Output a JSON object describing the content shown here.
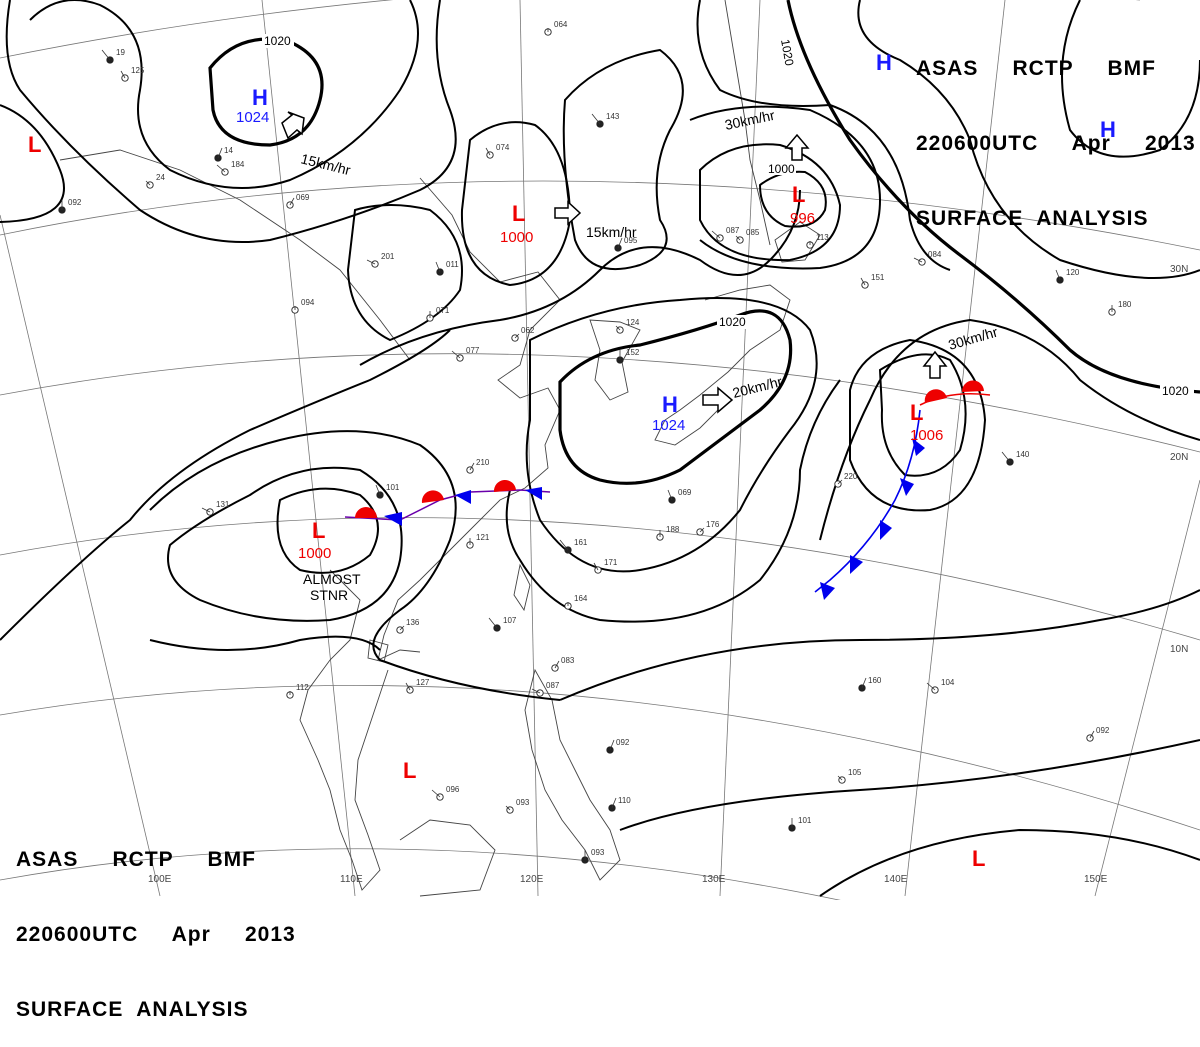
{
  "title": {
    "top": [
      "ASAS     RCTP     BMF",
      "220600UTC     Apr     2013",
      "SURFACE  ANALYSIS"
    ],
    "bottom": [
      "ASAS     RCTP     BMF",
      "220600UTC     Apr     2013",
      "SURFACE  ANALYSIS"
    ]
  },
  "colors": {
    "high": "#1a1aff",
    "low": "#ee0000",
    "isobar": "#000000",
    "warm_front": "#ee0000",
    "cold_front": "#0000ee"
  },
  "longitude_labels": [
    "100E",
    "110E",
    "120E",
    "130E",
    "140E",
    "150E"
  ],
  "latitude_labels": [
    "30N",
    "20N",
    "10N"
  ],
  "isobar_labels": [
    "1020",
    "1020",
    "1000",
    "1020",
    "1020"
  ],
  "pressure_systems": [
    {
      "type": "H",
      "value": "1024"
    },
    {
      "type": "H",
      "value": ""
    },
    {
      "type": "H",
      "value": ""
    },
    {
      "type": "L",
      "value": ""
    },
    {
      "type": "L",
      "value": "1000"
    },
    {
      "type": "L",
      "value": "996"
    },
    {
      "type": "L",
      "value": "1000"
    },
    {
      "type": "H",
      "value": "1024"
    },
    {
      "type": "L",
      "value": "1006"
    },
    {
      "type": "L",
      "value": ""
    },
    {
      "type": "L",
      "value": ""
    }
  ],
  "motion_labels": [
    "15km/hr",
    "15km/hr",
    "30km/hr",
    "20km/hr",
    "30km/hr"
  ],
  "annotations": [
    "ALMOST",
    "STNR"
  ],
  "station_samples": [
    "19",
    "125",
    "064",
    "14",
    "184",
    "24",
    "092",
    "069",
    "201",
    "011",
    "071",
    "062",
    "143",
    "074",
    "094",
    "095",
    "077",
    "124",
    "152",
    "210",
    "131",
    "101",
    "121",
    "136",
    "107",
    "127",
    "112",
    "092",
    "096",
    "093",
    "093",
    "083",
    "087",
    "069",
    "188",
    "176",
    "161",
    "171",
    "164",
    "160",
    "104",
    "105",
    "101",
    "092",
    "084",
    "120",
    "180",
    "220",
    "140",
    "151",
    "113",
    "110",
    "087",
    "085"
  ]
}
